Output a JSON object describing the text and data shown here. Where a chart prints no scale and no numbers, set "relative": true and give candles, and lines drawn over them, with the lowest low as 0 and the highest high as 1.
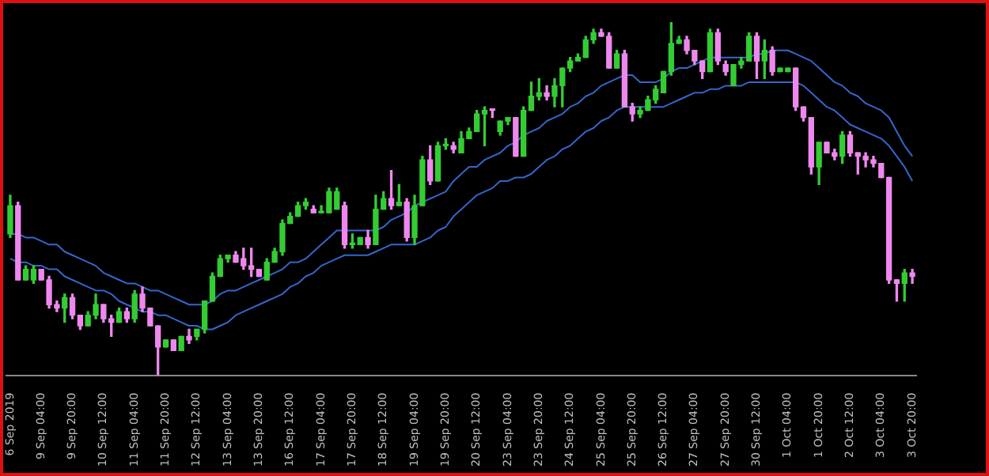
{
  "chart_data": {
    "type": "candlestick",
    "relative": true,
    "marker": "none",
    "categories": [
      "6 Sep 2019",
      null,
      null,
      null,
      "9 Sep 04:00",
      null,
      null,
      null,
      "9 Sep 20:00",
      null,
      null,
      null,
      "10 Sep 12:00",
      null,
      null,
      null,
      "11 Sep 04:00",
      null,
      null,
      null,
      "11 Sep 20:00",
      null,
      null,
      null,
      "12 Sep 12:00",
      null,
      null,
      null,
      "13 Sep 04:00",
      null,
      null,
      null,
      "13 Sep 20:00",
      null,
      null,
      null,
      "16 Sep 12:00",
      null,
      null,
      null,
      "17 Sep 04:00",
      null,
      null,
      null,
      "17 Sep 20:00",
      null,
      null,
      null,
      "18 Sep 12:00",
      null,
      null,
      null,
      "19 Sep 04:00",
      null,
      null,
      null,
      "19 Sep 20:00",
      null,
      null,
      null,
      "20 Sep 12:00",
      null,
      null,
      null,
      "23 Sep 04:00",
      null,
      null,
      null,
      "23 Sep 20:00",
      null,
      null,
      null,
      "24 Sep 12:00",
      null,
      null,
      null,
      "25 Sep 04:00",
      null,
      null,
      null,
      "25 Sep 20:00",
      null,
      null,
      null,
      "26 Sep 12:00",
      null,
      null,
      null,
      "27 Sep 04:00",
      null,
      null,
      null,
      "27 Sep 20:00",
      null,
      null,
      null,
      "30 Sep 12:00",
      null,
      null,
      null,
      "1 Oct 04:00",
      null,
      null,
      null,
      "1 Oct 20:00",
      null,
      null,
      null,
      "2 Oct 12:00",
      null,
      null,
      null,
      "3 Oct 04:00",
      null,
      null,
      null,
      "3 Oct 20:00"
    ],
    "ohlc": [
      [
        0.4,
        0.51,
        0.39,
        0.48
      ],
      [
        0.48,
        0.49,
        0.27,
        0.27
      ],
      [
        0.27,
        0.31,
        0.27,
        0.3
      ],
      [
        0.27,
        0.31,
        0.26,
        0.3
      ],
      [
        0.3,
        0.3,
        0.27,
        0.27
      ],
      [
        0.27,
        0.28,
        0.19,
        0.2
      ],
      [
        0.2,
        0.21,
        0.18,
        0.19
      ],
      [
        0.19,
        0.23,
        0.15,
        0.22
      ],
      [
        0.22,
        0.23,
        0.16,
        0.17
      ],
      [
        0.17,
        0.17,
        0.13,
        0.14
      ],
      [
        0.14,
        0.18,
        0.14,
        0.17
      ],
      [
        0.17,
        0.23,
        0.16,
        0.2
      ],
      [
        0.2,
        0.2,
        0.15,
        0.16
      ],
      [
        0.16,
        0.17,
        0.11,
        0.15
      ],
      [
        0.15,
        0.19,
        0.15,
        0.18
      ],
      [
        0.18,
        0.19,
        0.15,
        0.16
      ],
      [
        0.16,
        0.24,
        0.15,
        0.23
      ],
      [
        0.23,
        0.25,
        0.18,
        0.19
      ],
      [
        0.19,
        0.19,
        0.14,
        0.14
      ],
      [
        0.14,
        0.14,
        0,
        0.08
      ],
      [
        0.08,
        0.1,
        0.08,
        0.1
      ],
      [
        0.1,
        0.1,
        0.07,
        0.07
      ],
      [
        0.07,
        0.11,
        0.07,
        0.11
      ],
      [
        0.11,
        0.13,
        0.09,
        0.1
      ],
      [
        0.11,
        0.13,
        0.1,
        0.13
      ],
      [
        0.13,
        0.21,
        0.12,
        0.21
      ],
      [
        0.21,
        0.29,
        0.21,
        0.28
      ],
      [
        0.28,
        0.34,
        0.28,
        0.33
      ],
      [
        0.33,
        0.34,
        0.32,
        0.34
      ],
      [
        0.34,
        0.35,
        0.32,
        0.32
      ],
      [
        0.33,
        0.36,
        0.3,
        0.31
      ],
      [
        0.31,
        0.36,
        0.28,
        0.3
      ],
      [
        0.3,
        0.3,
        0.28,
        0.28
      ],
      [
        0.27,
        0.33,
        0.27,
        0.32
      ],
      [
        0.32,
        0.36,
        0.32,
        0.35
      ],
      [
        0.35,
        0.44,
        0.34,
        0.43
      ],
      [
        0.43,
        0.46,
        0.43,
        0.45
      ],
      [
        0.45,
        0.49,
        0.45,
        0.48
      ],
      [
        0.48,
        0.5,
        0.47,
        0.49
      ],
      [
        0.47,
        0.48,
        0.46,
        0.46
      ],
      [
        0.46,
        0.48,
        0.46,
        0.46
      ],
      [
        0.46,
        0.53,
        0.46,
        0.52
      ],
      [
        0.47,
        0.53,
        0.47,
        0.52
      ],
      [
        0.48,
        0.49,
        0.36,
        0.37
      ],
      [
        0.37,
        0.4,
        0.36,
        0.37
      ],
      [
        0.37,
        0.39,
        0.37,
        0.39
      ],
      [
        0.39,
        0.41,
        0.36,
        0.37
      ],
      [
        0.37,
        0.51,
        0.37,
        0.47
      ],
      [
        0.47,
        0.52,
        0.47,
        0.5
      ],
      [
        0.5,
        0.58,
        0.47,
        0.48
      ],
      [
        0.48,
        0.54,
        0.48,
        0.49
      ],
      [
        0.49,
        0.5,
        0.38,
        0.39
      ],
      [
        0.39,
        0.51,
        0.37,
        0.48
      ],
      [
        0.48,
        0.62,
        0.48,
        0.61
      ],
      [
        0.61,
        0.65,
        0.54,
        0.55
      ],
      [
        0.55,
        0.66,
        0.55,
        0.65
      ],
      [
        0.65,
        0.67,
        0.64,
        0.65
      ],
      [
        0.65,
        0.66,
        0.63,
        0.64
      ],
      [
        0.63,
        0.69,
        0.63,
        0.67
      ],
      [
        0.67,
        0.7,
        0.67,
        0.69
      ],
      [
        0.69,
        0.75,
        0.69,
        0.74
      ],
      [
        0.74,
        0.76,
        0.65,
        0.75
      ],
      [
        0.75,
        0.75,
        0.73,
        0.75
      ],
      [
        0.69,
        0.72,
        0.68,
        0.72
      ],
      [
        0.72,
        0.73,
        0.71,
        0.73
      ],
      [
        0.73,
        0.73,
        0.62,
        0.62
      ],
      [
        0.62,
        0.76,
        0.62,
        0.75
      ],
      [
        0.75,
        0.83,
        0.75,
        0.79
      ],
      [
        0.79,
        0.84,
        0.78,
        0.8
      ],
      [
        0.8,
        0.82,
        0.78,
        0.79
      ],
      [
        0.79,
        0.84,
        0.76,
        0.82
      ],
      [
        0.82,
        0.87,
        0.76,
        0.87
      ],
      [
        0.87,
        0.9,
        0.86,
        0.89
      ],
      [
        0.89,
        0.91,
        0.89,
        0.9
      ],
      [
        0.9,
        0.96,
        0.9,
        0.95
      ],
      [
        0.95,
        0.98,
        0.94,
        0.97
      ],
      [
        0.97,
        0.98,
        0.96,
        0.96
      ],
      [
        0.96,
        0.97,
        0.87,
        0.87
      ],
      [
        0.87,
        0.92,
        0.87,
        0.91
      ],
      [
        0.91,
        0.92,
        0.76,
        0.76
      ],
      [
        0.76,
        0.77,
        0.72,
        0.74
      ],
      [
        0.74,
        0.76,
        0.73,
        0.75
      ],
      [
        0.75,
        0.79,
        0.75,
        0.78
      ],
      [
        0.78,
        0.82,
        0.77,
        0.81
      ],
      [
        0.8,
        0.86,
        0.8,
        0.86
      ],
      [
        0.86,
        1,
        0.85,
        0.94
      ],
      [
        0.94,
        0.96,
        0.94,
        0.95
      ],
      [
        0.95,
        0.96,
        0.91,
        0.92
      ],
      [
        0.92,
        0.92,
        0.88,
        0.89
      ],
      [
        0.89,
        0.89,
        0.84,
        0.86
      ],
      [
        0.86,
        0.98,
        0.86,
        0.97
      ],
      [
        0.97,
        0.98,
        0.88,
        0.89
      ],
      [
        0.88,
        0.89,
        0.85,
        0.86
      ],
      [
        0.82,
        0.88,
        0.82,
        0.88
      ],
      [
        0.88,
        0.9,
        0.87,
        0.89
      ],
      [
        0.89,
        0.97,
        0.89,
        0.96
      ],
      [
        0.96,
        0.97,
        0.84,
        0.89
      ],
      [
        0.89,
        0.95,
        0.84,
        0.92
      ],
      [
        0.92,
        0.93,
        0.85,
        0.86
      ],
      [
        0.86,
        0.87,
        0.86,
        0.87
      ],
      [
        0.86,
        0.87,
        0.86,
        0.87
      ],
      [
        0.87,
        0.87,
        0.75,
        0.76
      ],
      [
        0.76,
        0.76,
        0.72,
        0.73
      ],
      [
        0.73,
        0.73,
        0.57,
        0.59
      ],
      [
        0.59,
        0.66,
        0.54,
        0.66
      ],
      [
        0.66,
        0.66,
        0.63,
        0.63
      ],
      [
        0.63,
        0.64,
        0.61,
        0.62
      ],
      [
        0.62,
        0.69,
        0.6,
        0.68
      ],
      [
        0.68,
        0.69,
        0.62,
        0.63
      ],
      [
        0.63,
        0.63,
        0.57,
        0.62
      ],
      [
        0.62,
        0.63,
        0.59,
        0.61
      ],
      [
        0.61,
        0.62,
        0.59,
        0.6
      ],
      [
        0.6,
        0.6,
        0.56,
        0.56
      ],
      [
        0.56,
        0.56,
        0.26,
        0.27
      ],
      [
        0.27,
        0.27,
        0.21,
        0.26
      ],
      [
        0.26,
        0.3,
        0.21,
        0.29
      ],
      [
        0.29,
        0.3,
        0.26,
        0.28
      ]
    ],
    "colors": [
      "#33cc33",
      "#ee88ee",
      "#33cc33",
      "#33cc33",
      "#ee88ee",
      "#ee88ee",
      "#ee88ee",
      "#33cc33",
      "#ee88ee",
      "#ee88ee",
      "#33cc33",
      "#33cc33",
      "#ee88ee",
      "#ee88ee",
      "#33cc33",
      "#ee88ee",
      "#33cc33",
      "#ee88ee",
      "#ee88ee",
      "#ee88ee",
      "#33cc33",
      "#ee88ee",
      "#33cc33",
      "#ee88ee",
      "#33cc33",
      "#33cc33",
      "#33cc33",
      "#33cc33",
      "#33cc33",
      "#ee88ee",
      "#ee88ee",
      "#ee88ee",
      "#ee88ee",
      "#33cc33",
      "#33cc33",
      "#33cc33",
      "#33cc33",
      "#33cc33",
      "#33cc33",
      "#ee88ee",
      "#33cc33",
      "#33cc33",
      "#33cc33",
      "#ee88ee",
      "#33cc33",
      "#33cc33",
      "#ee88ee",
      "#33cc33",
      "#33cc33",
      "#ee88ee",
      "#33cc33",
      "#ee88ee",
      "#33cc33",
      "#33cc33",
      "#ee88ee",
      "#33cc33",
      "#33cc33",
      "#ee88ee",
      "#33cc33",
      "#33cc33",
      "#33cc33",
      "#33cc33",
      "#ee88ee",
      "#33cc33",
      "#33cc33",
      "#ee88ee",
      "#33cc33",
      "#33cc33",
      "#33cc33",
      "#ee88ee",
      "#33cc33",
      "#33cc33",
      "#33cc33",
      "#33cc33",
      "#33cc33",
      "#33cc33",
      "#ee88ee",
      "#ee88ee",
      "#33cc33",
      "#ee88ee",
      "#ee88ee",
      "#33cc33",
      "#33cc33",
      "#33cc33",
      "#33cc33",
      "#33cc33",
      "#33cc33",
      "#ee88ee",
      "#ee88ee",
      "#ee88ee",
      "#33cc33",
      "#ee88ee",
      "#ee88ee",
      "#33cc33",
      "#33cc33",
      "#33cc33",
      "#ee88ee",
      "#33cc33",
      "#ee88ee",
      "#33cc33",
      "#33cc33",
      "#ee88ee",
      "#ee88ee",
      "#ee88ee",
      "#33cc33",
      "#ee88ee",
      "#ee88ee",
      "#33cc33",
      "#ee88ee",
      "#ee88ee",
      "#ee88ee",
      "#ee88ee",
      "#ee88ee",
      "#ee88ee",
      "#ee88ee",
      "#33cc33",
      "#ee88ee"
    ],
    "series": [
      {
        "type": "line",
        "color": "#3366cc",
        "values": [
          0.4,
          0.4,
          0.39,
          0.39,
          0.38,
          0.37,
          0.37,
          0.35,
          0.34,
          0.33,
          0.32,
          0.31,
          0.29,
          0.28,
          0.27,
          0.26,
          0.26,
          0.25,
          0.24,
          0.24,
          0.23,
          0.22,
          0.21,
          0.2,
          0.2,
          0.2,
          0.21,
          0.23,
          0.24,
          0.24,
          0.25,
          0.26,
          0.27,
          0.28,
          0.29,
          0.3,
          0.32,
          0.32,
          0.33,
          0.35,
          0.37,
          0.39,
          0.41,
          0.41,
          0.41,
          0.41,
          0.41,
          0.41,
          0.42,
          0.44,
          0.45,
          0.46,
          0.48,
          0.49,
          0.5,
          0.51,
          0.52,
          0.55,
          0.57,
          0.59,
          0.59,
          0.61,
          0.62,
          0.63,
          0.65,
          0.66,
          0.68,
          0.69,
          0.7,
          0.72,
          0.73,
          0.74,
          0.76,
          0.77,
          0.79,
          0.8,
          0.82,
          0.83,
          0.84,
          0.85,
          0.85,
          0.83,
          0.83,
          0.83,
          0.84,
          0.86,
          0.87,
          0.87,
          0.88,
          0.89,
          0.9,
          0.9,
          0.9,
          0.9,
          0.9,
          0.9,
          0.91,
          0.91,
          0.92,
          0.92,
          0.92,
          0.91,
          0.9,
          0.89,
          0.87,
          0.85,
          0.83,
          0.82,
          0.8,
          0.79,
          0.77,
          0.76,
          0.75,
          0.73,
          0.69,
          0.65,
          0.62
        ]
      },
      {
        "type": "line",
        "color": "#3366cc",
        "values": [
          0.33,
          0.32,
          0.32,
          0.31,
          0.31,
          0.3,
          0.3,
          0.28,
          0.27,
          0.26,
          0.25,
          0.24,
          0.24,
          0.23,
          0.21,
          0.2,
          0.19,
          0.18,
          0.18,
          0.17,
          0.17,
          0.16,
          0.15,
          0.14,
          0.14,
          0.13,
          0.13,
          0.14,
          0.15,
          0.17,
          0.18,
          0.19,
          0.2,
          0.21,
          0.22,
          0.23,
          0.25,
          0.26,
          0.28,
          0.29,
          0.31,
          0.32,
          0.33,
          0.34,
          0.34,
          0.34,
          0.34,
          0.35,
          0.36,
          0.37,
          0.37,
          0.37,
          0.37,
          0.38,
          0.39,
          0.41,
          0.42,
          0.45,
          0.47,
          0.49,
          0.51,
          0.52,
          0.53,
          0.55,
          0.55,
          0.56,
          0.56,
          0.57,
          0.59,
          0.61,
          0.62,
          0.64,
          0.65,
          0.67,
          0.69,
          0.7,
          0.72,
          0.73,
          0.75,
          0.76,
          0.76,
          0.76,
          0.76,
          0.76,
          0.76,
          0.77,
          0.78,
          0.79,
          0.8,
          0.8,
          0.81,
          0.81,
          0.82,
          0.82,
          0.82,
          0.83,
          0.83,
          0.83,
          0.83,
          0.83,
          0.83,
          0.83,
          0.82,
          0.8,
          0.78,
          0.76,
          0.75,
          0.73,
          0.71,
          0.7,
          0.69,
          0.68,
          0.67,
          0.65,
          0.62,
          0.59,
          0.55
        ]
      }
    ]
  }
}
